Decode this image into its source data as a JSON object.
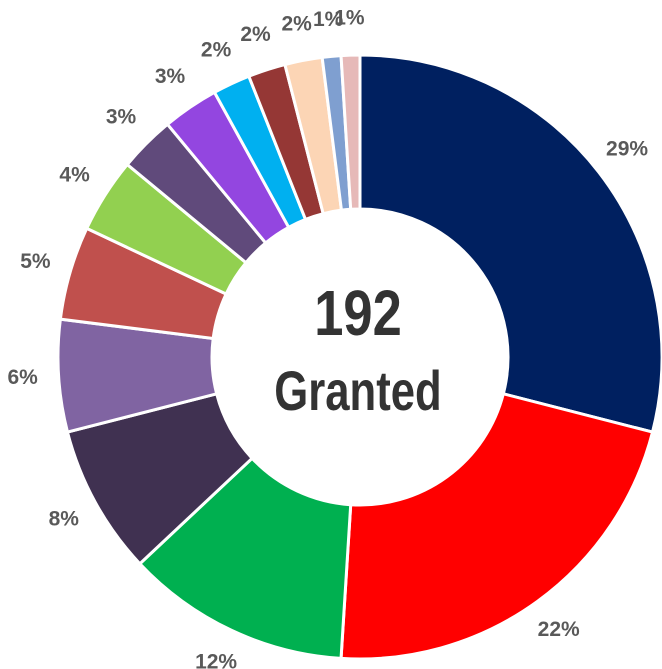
{
  "chart_data": {
    "type": "pie",
    "values": [
      29,
      22,
      12,
      8,
      6,
      5,
      4,
      3,
      3,
      2,
      2,
      2,
      1,
      1
    ],
    "value_labels": [
      "29%",
      "22%",
      "12%",
      "8%",
      "6%",
      "5%",
      "4%",
      "3%",
      "3%",
      "2%",
      "2%",
      "2%",
      "1%",
      "1%"
    ],
    "colors": [
      "#002060",
      "#ff0000",
      "#00b050",
      "#403151",
      "#8064a2",
      "#c0504d",
      "#92d050",
      "#604a7b",
      "#9346e0",
      "#00b0f0",
      "#953735",
      "#fcd5b5",
      "#7f9fd0",
      "#e6b9b8"
    ],
    "center_value": "192",
    "center_label": "Granted"
  }
}
